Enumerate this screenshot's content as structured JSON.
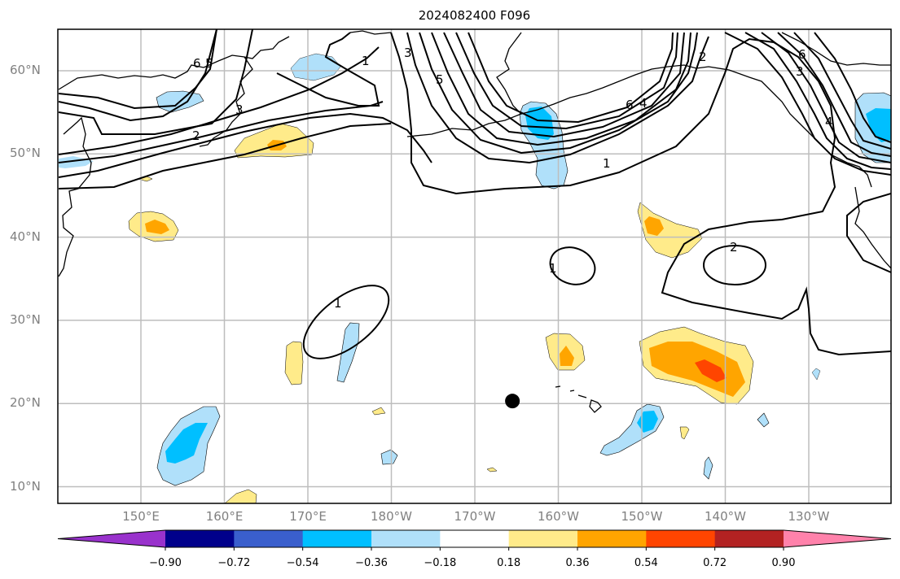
{
  "title": "2024082400 F096",
  "chart_data": {
    "type": "map",
    "title": "2024082400 F096",
    "projection": "PlateCarree",
    "extent": {
      "lon_min": 140,
      "lon_max": 240,
      "lat_min": 8,
      "lat_max": 65
    },
    "lat_ticks": [
      {
        "value": 60,
        "label": "60°N"
      },
      {
        "value": 50,
        "label": "50°N"
      },
      {
        "value": 40,
        "label": "40°N"
      },
      {
        "value": 30,
        "label": "30°N"
      },
      {
        "value": 20,
        "label": "20°N"
      },
      {
        "value": 10,
        "label": "10°N"
      }
    ],
    "lon_ticks": [
      {
        "value": 150,
        "label": "150°E"
      },
      {
        "value": 160,
        "label": "160°E"
      },
      {
        "value": 170,
        "label": "170°E"
      },
      {
        "value": 180,
        "label": "180°W"
      },
      {
        "value": 190,
        "label": "170°W"
      },
      {
        "value": 200,
        "label": "160°W"
      },
      {
        "value": 210,
        "label": "150°W"
      },
      {
        "value": 220,
        "label": "140°W"
      },
      {
        "value": 230,
        "label": "130°W"
      }
    ],
    "grid": true,
    "colorbar": {
      "orientation": "horizontal",
      "placement": "bottom",
      "extend": "both",
      "levels": [
        -0.9,
        -0.72,
        -0.54,
        -0.36,
        -0.18,
        0.18,
        0.36,
        0.54,
        0.72,
        0.9
      ],
      "tick_labels": [
        "−0.90",
        "−0.72",
        "−0.54",
        "−0.36",
        "−0.18",
        "0.18",
        "0.36",
        "0.54",
        "0.72",
        "0.90"
      ],
      "colors": [
        "#9932cc",
        "#00008b",
        "#3a5fcd",
        "#00bfff",
        "#b0e0fa",
        "#ffffff",
        "#ffeb8a",
        "#ffa500",
        "#ff4500",
        "#b22222",
        "#ff82ab"
      ]
    },
    "contour_labels": [
      "1",
      "2",
      "3",
      "4",
      "5",
      "6"
    ],
    "marker": {
      "lon": 194.5,
      "lat": 20.3,
      "symbol": "filled-circle",
      "color": "#000000"
    },
    "shaded_anomalies": [
      {
        "lon": 152.5,
        "lat": 15.5,
        "level": "-0.54",
        "color": "#00bfff"
      },
      {
        "lon": 152,
        "lat": 55.5,
        "level": "-0.36",
        "color": "#b0e0fa"
      },
      {
        "lon": 171,
        "lat": 59.5,
        "level": "-0.36",
        "color": "#b0e0fa"
      },
      {
        "lon": 197.5,
        "lat": 52.5,
        "level": "-0.54",
        "color": "#00bfff"
      },
      {
        "lon": 238,
        "lat": 53.5,
        "level": "-0.54",
        "color": "#00bfff"
      },
      {
        "lon": 209.5,
        "lat": 18,
        "level": "-0.54",
        "color": "#00bfff"
      },
      {
        "lon": 184,
        "lat": 26,
        "level": "-0.36",
        "color": "#b0e0fa"
      },
      {
        "lon": 166,
        "lat": 51,
        "level": "0.36",
        "color": "#ffa500"
      },
      {
        "lon": 151,
        "lat": 41,
        "level": "0.36",
        "color": "#ffa500"
      },
      {
        "lon": 212,
        "lat": 41.5,
        "level": "0.36",
        "color": "#ffa500"
      },
      {
        "lon": 201,
        "lat": 25.5,
        "level": "0.36",
        "color": "#ffa500"
      },
      {
        "lon": 218,
        "lat": 24,
        "level": "0.54",
        "color": "#ff4500"
      },
      {
        "lon": 169,
        "lat": 25,
        "level": "0.18",
        "color": "#ffeb8a"
      }
    ]
  }
}
